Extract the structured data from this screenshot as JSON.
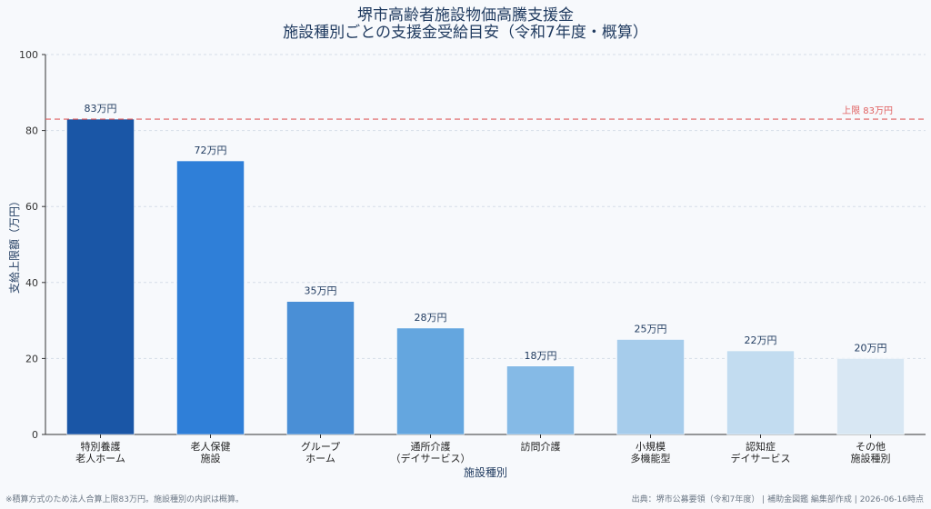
{
  "title_line1": "堺市高齢者施設物価高騰支援金",
  "title_line2": "施設種別ごとの支援金受給目安（令和7年度・概算）",
  "chart_data": {
    "type": "bar",
    "title": "堺市高齢者施設物価高騰支援金 施設種別ごとの支援金受給目安（令和7年度・概算）",
    "xlabel": "施設種別",
    "ylabel": "支給上限額（万円）",
    "ylim": [
      0,
      100
    ],
    "yticks": [
      0,
      20,
      40,
      60,
      80,
      100
    ],
    "grid": true,
    "categories": [
      [
        "特別養護",
        "老人ホーム"
      ],
      [
        "老人保健",
        "施設"
      ],
      [
        "グループ",
        "ホーム"
      ],
      [
        "通所介護",
        "（デイサービス）"
      ],
      [
        "訪問介護"
      ],
      [
        "小規模",
        "多機能型"
      ],
      [
        "認知症",
        "デイサービス"
      ],
      [
        "その他",
        "施設種別"
      ]
    ],
    "values": [
      83,
      72,
      35,
      28,
      18,
      25,
      22,
      20
    ],
    "data_labels": [
      "83万円",
      "72万円",
      "35万円",
      "28万円",
      "18万円",
      "25万円",
      "22万円",
      "20万円"
    ],
    "bar_colors": [
      "#1a56a6",
      "#2f7fd8",
      "#4a8fd6",
      "#64a6df",
      "#85bae6",
      "#a6cceb",
      "#c2dcf0",
      "#d8e7f3"
    ],
    "reference_line": {
      "value": 83,
      "label": "上限 83万円",
      "color": "#e06060"
    }
  },
  "footnote_left": "※積算方式のため法人合算上限83万円。施設種別の内訳は概算。",
  "footnote_right": "出典：堺市公募要領（令和7年度） | 補助金図鑑 編集部作成 | 2026-06-16時点"
}
